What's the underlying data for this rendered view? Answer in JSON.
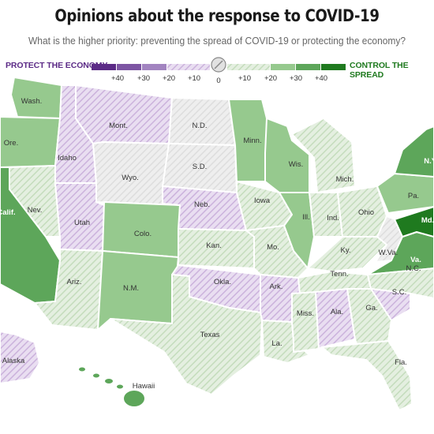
{
  "title": "Opinions about the response to COVID-19",
  "subtitle": "What is the higher priority: preventing the spread of COVID-19 or protecting the economy?",
  "legend": {
    "left_label": "PROTECT THE ECONOMY",
    "right_label": "CONTROL THE SPREAD",
    "ticks": [
      "+40",
      "+30",
      "+20",
      "+10",
      "0",
      "+10",
      "+20",
      "+30",
      "+40"
    ],
    "colors": {
      "econ_40": "#5b2a86",
      "econ_30": "#7d55a3",
      "econ_20": "#a284c0",
      "econ_10": "#dccae8",
      "neutral": "#e1e1e1",
      "spread_10": "#c9dfc2",
      "spread_20": "#96c98e",
      "spread_30": "#5da65a",
      "spread_40": "#1f7a1f"
    }
  },
  "states": [
    {
      "label": "Wash.",
      "fill": "spread_20"
    },
    {
      "label": "Ore.",
      "fill": "spread_20"
    },
    {
      "label": "Idaho",
      "fill": "econ_10"
    },
    {
      "label": "Mont.",
      "fill": "econ_10"
    },
    {
      "label": "Wyo.",
      "fill": "neutral"
    },
    {
      "label": "N.D.",
      "fill": "neutral"
    },
    {
      "label": "S.D.",
      "fill": "neutral"
    },
    {
      "label": "Minn.",
      "fill": "spread_20"
    },
    {
      "label": "Wis.",
      "fill": "spread_20"
    },
    {
      "label": "Mich.",
      "fill": "spread_10"
    },
    {
      "label": "Nev.",
      "fill": "spread_10"
    },
    {
      "label": "Utah",
      "fill": "econ_10"
    },
    {
      "label": "Colo.",
      "fill": "spread_20"
    },
    {
      "label": "Neb.",
      "fill": "econ_10"
    },
    {
      "label": "Iowa",
      "fill": "spread_10"
    },
    {
      "label": "Ill.",
      "fill": "spread_20"
    },
    {
      "label": "Ind.",
      "fill": "spread_10"
    },
    {
      "label": "Ohio",
      "fill": "spread_10"
    },
    {
      "label": "Pa.",
      "fill": "spread_20"
    },
    {
      "label": "N.Y.",
      "fill": "spread_30"
    },
    {
      "label": "Calif.",
      "fill": "spread_30"
    },
    {
      "label": "Ariz.",
      "fill": "spread_10"
    },
    {
      "label": "N.M.",
      "fill": "spread_20"
    },
    {
      "label": "Kan.",
      "fill": "spread_10"
    },
    {
      "label": "Mo.",
      "fill": "spread_10"
    },
    {
      "label": "Ky.",
      "fill": "spread_10"
    },
    {
      "label": "W.Va.",
      "fill": "neutral"
    },
    {
      "label": "Va.",
      "fill": "spread_30"
    },
    {
      "label": "Md.",
      "fill": "spread_40"
    },
    {
      "label": "Okla.",
      "fill": "econ_10"
    },
    {
      "label": "Ark.",
      "fill": "econ_10"
    },
    {
      "label": "Tenn.",
      "fill": "spread_10"
    },
    {
      "label": "N.C.",
      "fill": "spread_10"
    },
    {
      "label": "S.C.",
      "fill": "econ_10"
    },
    {
      "label": "Texas",
      "fill": "spread_10"
    },
    {
      "label": "La.",
      "fill": "spread_10"
    },
    {
      "label": "Miss.",
      "fill": "spread_10"
    },
    {
      "label": "Ala.",
      "fill": "econ_10"
    },
    {
      "label": "Ga.",
      "fill": "spread_10"
    },
    {
      "label": "Fla.",
      "fill": "spread_10"
    },
    {
      "label": "Alaska",
      "fill": "econ_10"
    },
    {
      "label": "Hawaii",
      "fill": "spread_30"
    }
  ]
}
